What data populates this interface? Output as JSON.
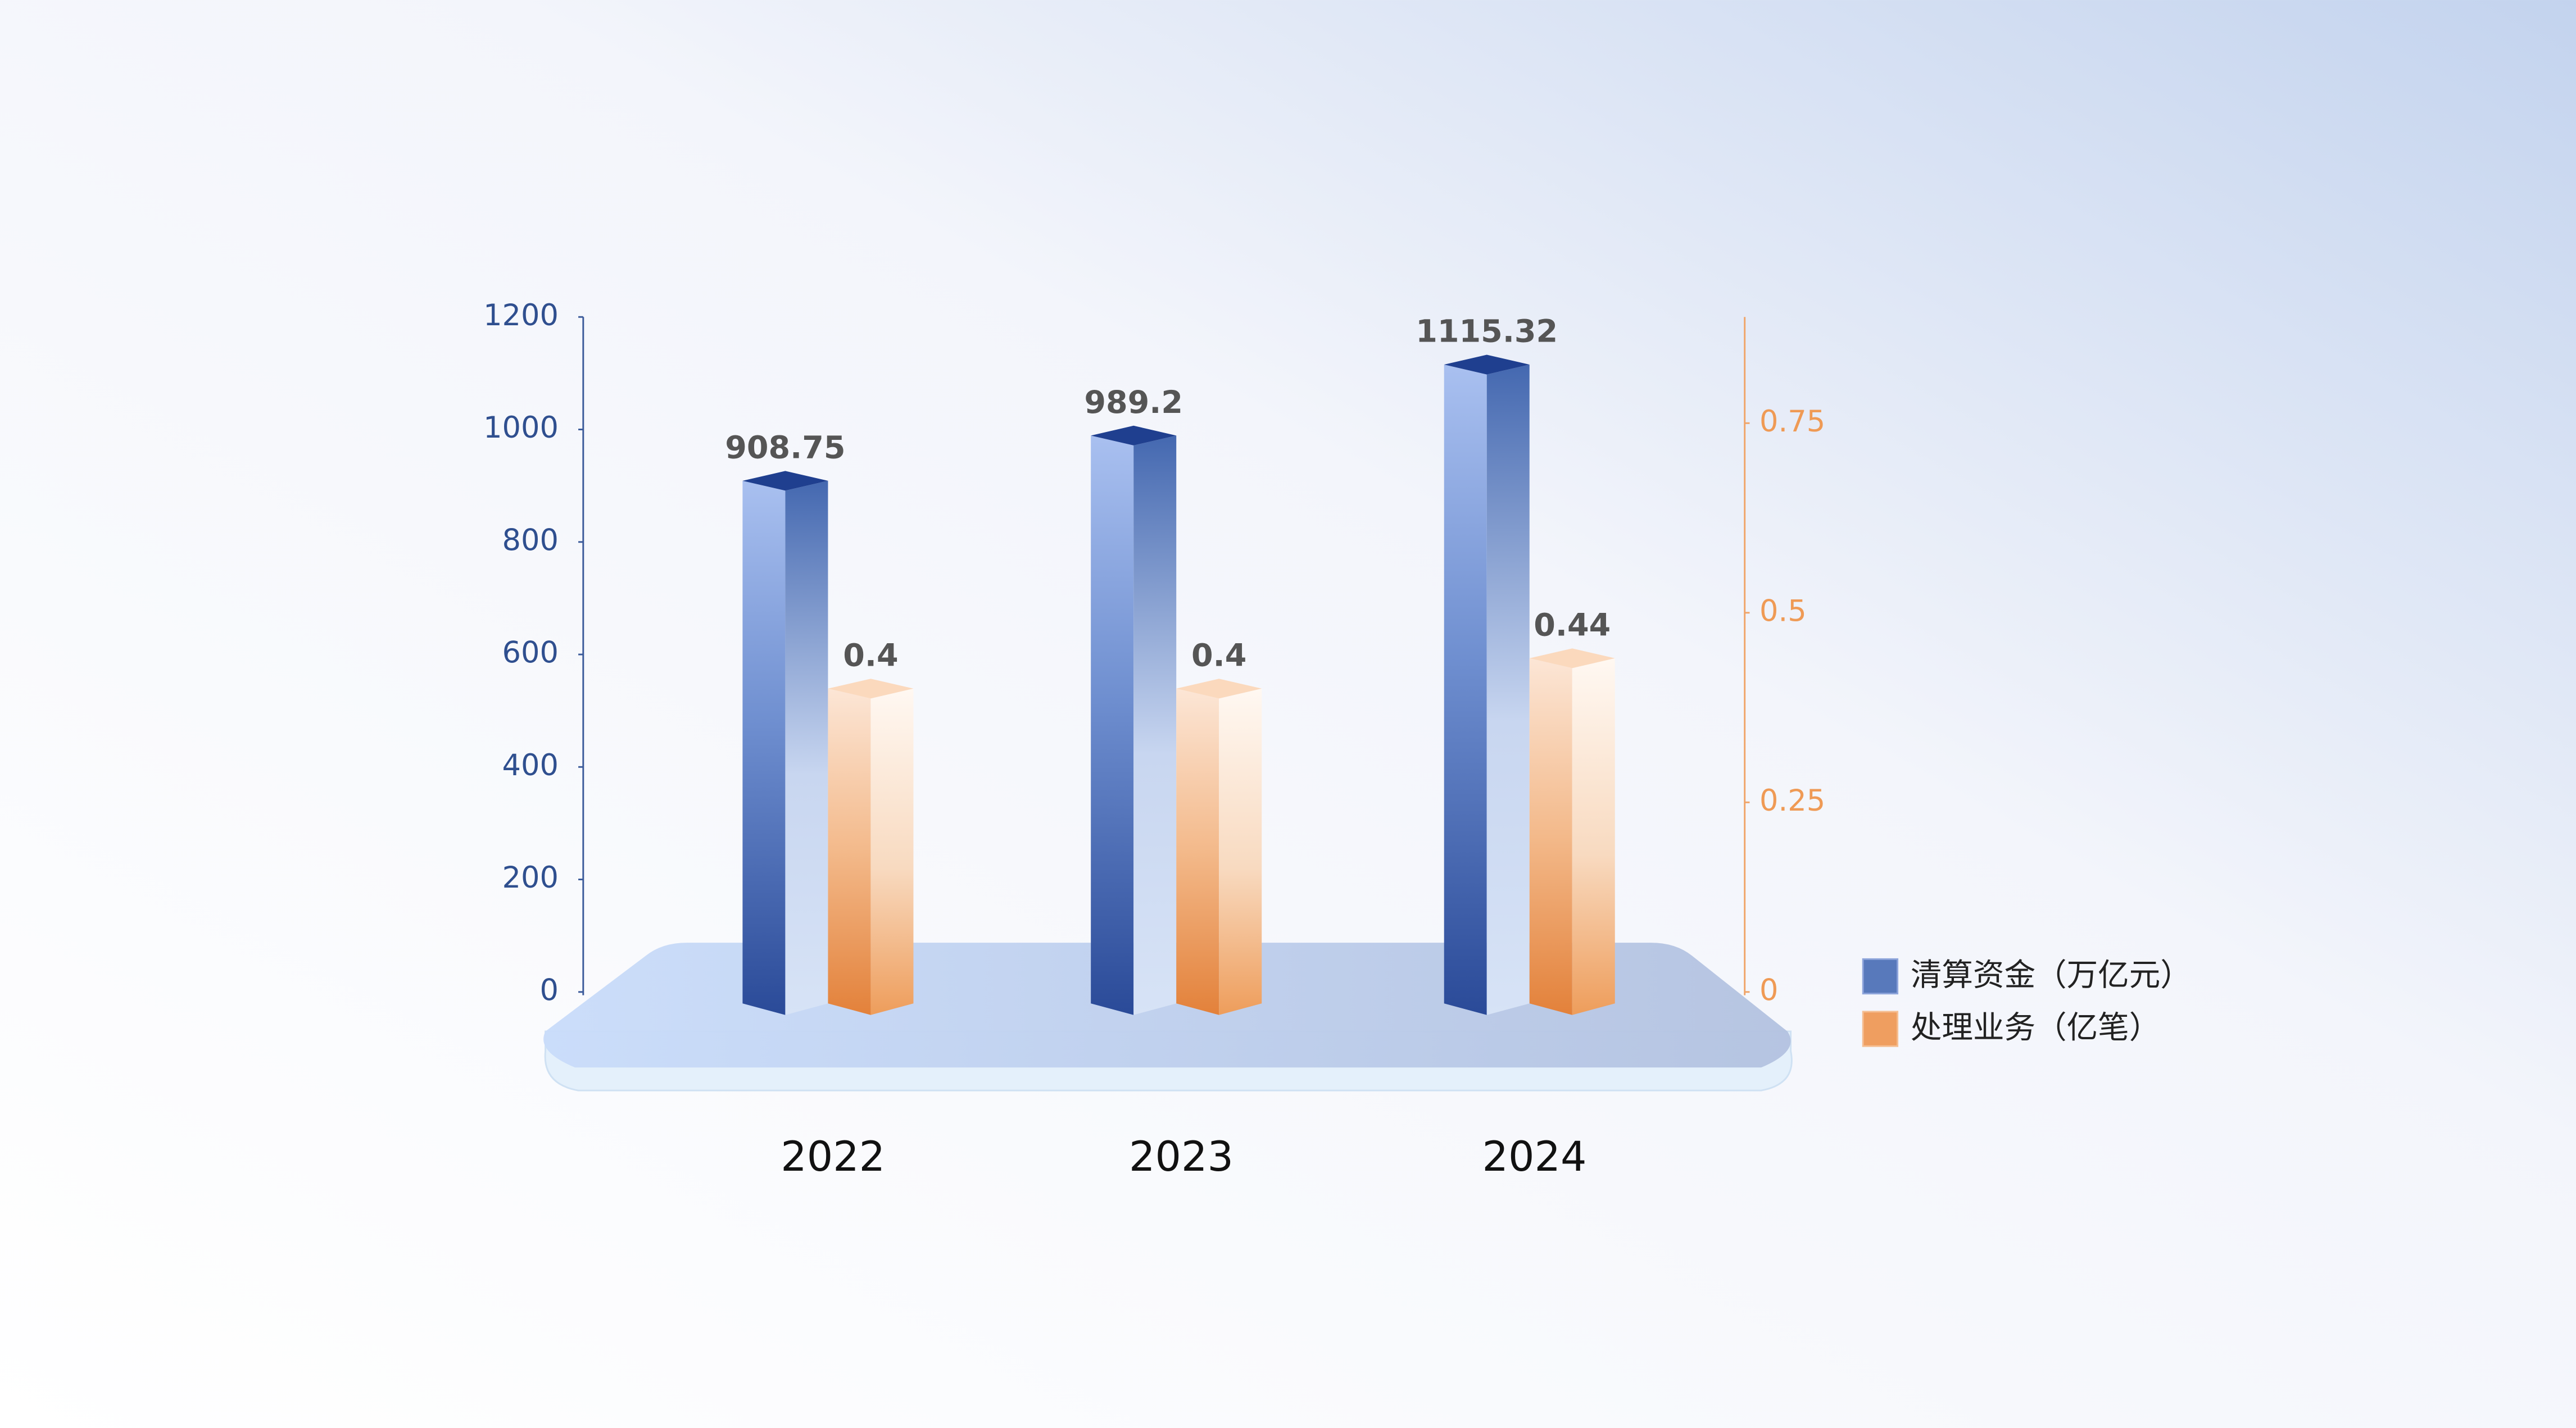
{
  "chart_data": {
    "type": "bar3d",
    "categories": [
      "2022",
      "2023",
      "2024"
    ],
    "series": [
      {
        "name": "清算资金（万亿元）",
        "color": "#3d64b0",
        "values": [
          908.75,
          989.2,
          1115.32
        ]
      },
      {
        "name": "处理业务（亿笔）",
        "color": "#ee8f45",
        "axis": "y2",
        "values": [
          0.4,
          0.4,
          0.44
        ]
      }
    ],
    "ylim": [
      0,
      1200
    ],
    "yticks": [
      0,
      200,
      400,
      600,
      800,
      1000,
      1200
    ],
    "y2lim": [
      0,
      0.89
    ],
    "y2ticks": [
      0,
      0.25,
      0.5,
      0.75
    ],
    "legend": "right"
  }
}
